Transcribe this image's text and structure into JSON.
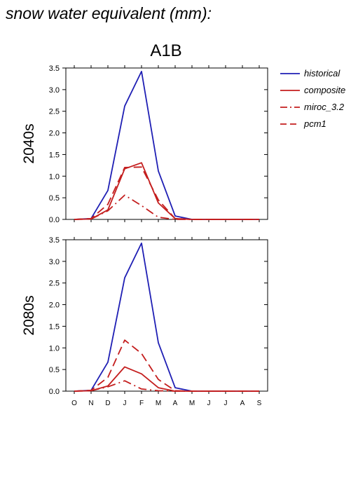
{
  "title": "snow water equivalent (mm):",
  "scenario": "A1B",
  "colors": {
    "historical": "#1f1fb4",
    "scenario": "#c41e1e"
  },
  "legend": {
    "placement": "right",
    "items": [
      {
        "key": "historical",
        "label": "historical",
        "style": "solid"
      },
      {
        "key": "composite",
        "label": "composite",
        "style": "solid"
      },
      {
        "key": "miroc_3.2",
        "label": "miroc_3.2",
        "style": "dashdot"
      },
      {
        "key": "pcm1",
        "label": "pcm1",
        "style": "dashed"
      }
    ]
  },
  "chart_data": [
    {
      "type": "line",
      "ylabel": "2040s",
      "ylim": [
        0,
        3.5
      ],
      "yticks": [
        "0.0",
        "0.5",
        "1.0",
        "1.5",
        "2.0",
        "2.5",
        "3.0",
        "3.5"
      ],
      "categories": [
        "O",
        "N",
        "D",
        "J",
        "F",
        "M",
        "A",
        "M",
        "J",
        "J",
        "A",
        "S"
      ],
      "series": [
        {
          "name": "historical",
          "style": "solid",
          "values": [
            0.0,
            0.02,
            0.67,
            2.62,
            3.42,
            1.12,
            0.08,
            0.0,
            0.0,
            0.0,
            0.0,
            0.0
          ]
        },
        {
          "name": "composite",
          "style": "solid",
          "values": [
            0.0,
            0.01,
            0.22,
            1.17,
            1.31,
            0.38,
            0.02,
            0.0,
            0.0,
            0.0,
            0.0,
            0.0
          ]
        },
        {
          "name": "miroc_3.2",
          "style": "dashdot",
          "values": [
            0.0,
            0.01,
            0.2,
            0.56,
            0.32,
            0.05,
            0.0,
            0.0,
            0.0,
            0.0,
            0.0,
            0.0
          ]
        },
        {
          "name": "pcm1",
          "style": "dashed",
          "values": [
            0.0,
            0.02,
            0.35,
            1.2,
            1.21,
            0.45,
            0.02,
            0.0,
            0.0,
            0.0,
            0.0,
            0.0
          ]
        }
      ]
    },
    {
      "type": "line",
      "ylabel": "2080s",
      "ylim": [
        0,
        3.5
      ],
      "yticks": [
        "0.0",
        "0.5",
        "1.0",
        "1.5",
        "2.0",
        "2.5",
        "3.0",
        "3.5"
      ],
      "categories": [
        "O",
        "N",
        "D",
        "J",
        "F",
        "M",
        "A",
        "M",
        "J",
        "J",
        "A",
        "S"
      ],
      "series": [
        {
          "name": "historical",
          "style": "solid",
          "values": [
            0.0,
            0.02,
            0.67,
            2.62,
            3.42,
            1.12,
            0.08,
            0.0,
            0.0,
            0.0,
            0.0,
            0.0
          ]
        },
        {
          "name": "composite",
          "style": "solid",
          "values": [
            0.0,
            0.01,
            0.12,
            0.56,
            0.4,
            0.08,
            0.0,
            0.0,
            0.0,
            0.0,
            0.0,
            0.0
          ]
        },
        {
          "name": "miroc_3.2",
          "style": "dashdot",
          "values": [
            0.0,
            0.01,
            0.1,
            0.24,
            0.05,
            0.01,
            0.0,
            0.0,
            0.0,
            0.0,
            0.0,
            0.0
          ]
        },
        {
          "name": "pcm1",
          "style": "dashed",
          "values": [
            0.0,
            0.02,
            0.32,
            1.18,
            0.87,
            0.27,
            0.01,
            0.0,
            0.0,
            0.0,
            0.0,
            0.0
          ]
        }
      ]
    }
  ]
}
